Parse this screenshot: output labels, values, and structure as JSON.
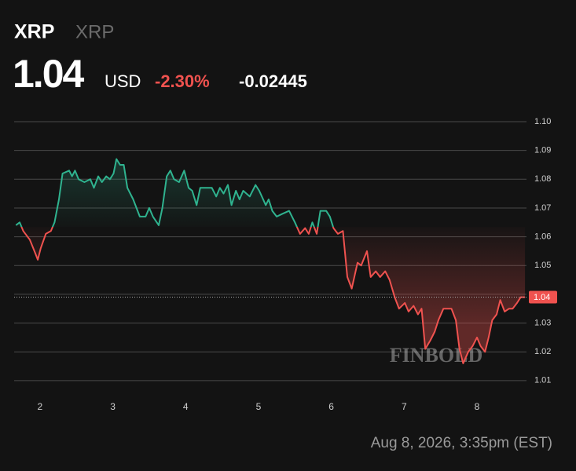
{
  "chart_data": {
    "type": "line",
    "title": "XRP",
    "subtitle": "XRP",
    "price": "1.04",
    "currency": "USD",
    "change_percent": "-2.30%",
    "change": "-0.02445",
    "timestamp": "Aug 8, 2026, 3:35pm (EST)",
    "watermark": "FINBOLD",
    "up_color": "#2fb38f",
    "down_color": "#f0524f",
    "x": [
      1.67,
      1.72,
      1.77,
      1.86,
      1.94,
      1.97,
      2.01,
      2.08,
      2.15,
      2.2,
      2.26,
      2.31,
      2.4,
      2.44,
      2.48,
      2.53,
      2.61,
      2.69,
      2.74,
      2.8,
      2.85,
      2.91,
      2.96,
      3.01,
      3.05,
      3.1,
      3.15,
      3.2,
      3.28,
      3.37,
      3.45,
      3.5,
      3.55,
      3.63,
      3.68,
      3.74,
      3.79,
      3.84,
      3.91,
      3.98,
      4.04,
      4.09,
      4.15,
      4.2,
      4.25,
      4.31,
      4.36,
      4.42,
      4.47,
      4.52,
      4.58,
      4.63,
      4.69,
      4.74,
      4.79,
      4.88,
      4.96,
      5.01,
      5.1,
      5.14,
      5.19,
      5.25,
      5.33,
      5.42,
      5.5,
      5.57,
      5.64,
      5.69,
      5.74,
      5.8,
      5.85,
      5.93,
      5.98,
      6.03,
      6.09,
      6.16,
      6.22,
      6.28,
      6.36,
      6.41,
      6.49,
      6.54,
      6.61,
      6.67,
      6.74,
      6.8,
      6.87,
      6.93,
      7.01,
      7.06,
      7.13,
      7.19,
      7.24,
      7.29,
      7.36,
      7.42,
      7.47,
      7.54,
      7.6,
      7.65,
      7.71,
      7.76,
      7.81,
      7.88,
      7.94,
      8.0,
      8.05,
      8.11,
      8.16,
      8.21,
      8.27,
      8.32,
      8.38,
      8.44,
      8.49,
      8.55,
      8.6,
      8.66
    ],
    "values": [
      1.064,
      1.065,
      1.062,
      1.059,
      1.054,
      1.052,
      1.056,
      1.061,
      1.062,
      1.065,
      1.073,
      1.082,
      1.083,
      1.081,
      1.083,
      1.08,
      1.079,
      1.08,
      1.077,
      1.081,
      1.079,
      1.081,
      1.08,
      1.082,
      1.087,
      1.085,
      1.085,
      1.077,
      1.073,
      1.067,
      1.067,
      1.07,
      1.067,
      1.064,
      1.07,
      1.081,
      1.083,
      1.08,
      1.079,
      1.083,
      1.077,
      1.076,
      1.071,
      1.077,
      1.077,
      1.077,
      1.077,
      1.074,
      1.077,
      1.075,
      1.078,
      1.071,
      1.076,
      1.073,
      1.076,
      1.074,
      1.078,
      1.076,
      1.071,
      1.073,
      1.069,
      1.067,
      1.068,
      1.069,
      1.065,
      1.061,
      1.063,
      1.061,
      1.065,
      1.061,
      1.069,
      1.069,
      1.067,
      1.063,
      1.061,
      1.062,
      1.046,
      1.042,
      1.051,
      1.05,
      1.055,
      1.046,
      1.048,
      1.046,
      1.048,
      1.045,
      1.039,
      1.035,
      1.037,
      1.034,
      1.036,
      1.033,
      1.035,
      1.021,
      1.024,
      1.027,
      1.031,
      1.035,
      1.035,
      1.035,
      1.031,
      1.021,
      1.016,
      1.02,
      1.022,
      1.025,
      1.022,
      1.02,
      1.025,
      1.031,
      1.033,
      1.038,
      1.034,
      1.035,
      1.035,
      1.037,
      1.039,
      1.039
    ],
    "xlim": [
      1.645,
      8.68
    ],
    "xticks": [
      2,
      3,
      4,
      5,
      6,
      7,
      8
    ],
    "ylim": [
      1.0045,
      1.1
    ],
    "yticks": [
      1.01,
      1.02,
      1.03,
      1.04,
      1.05,
      1.06,
      1.07,
      1.08,
      1.09,
      {
        "value": 1.1,
        "label": "1.10"
      }
    ],
    "grid": true
  }
}
